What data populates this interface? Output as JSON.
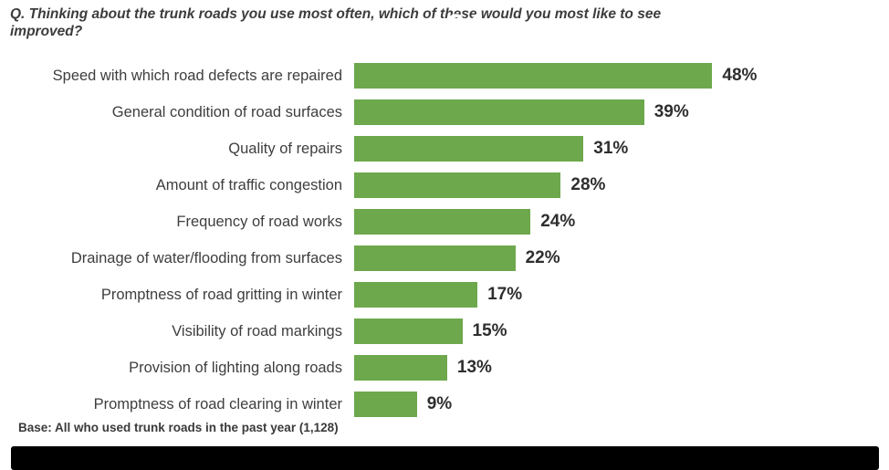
{
  "header": {
    "question_line1": "Q. Thinking about the trunk roads you use most often, which of these would you most like to see",
    "question_line2": "improved?",
    "unit_symbol": "%"
  },
  "chart_data": {
    "type": "bar",
    "orientation": "horizontal",
    "unit": "%",
    "title": "Q. Thinking about the trunk roads you use most often, which of these would you most like to see improved?",
    "categories": [
      "Speed with which road defects are repaired",
      "General condition of road surfaces",
      "Quality of repairs",
      "Amount of traffic congestion",
      "Frequency of road works",
      "Drainage of water/flooding from surfaces",
      "Promptness of road gritting in winter",
      "Visibility of road markings",
      "Provision of lighting along roads",
      "Promptness of road clearing in winter"
    ],
    "values": [
      48,
      39,
      31,
      28,
      24,
      22,
      17,
      15,
      13,
      9
    ],
    "xlim": [
      0,
      100
    ],
    "grid": false,
    "legend": "none",
    "data_labels": "outside-end"
  },
  "footer": {
    "base_note": "Base: All who used trunk roads in the past year (1,128)"
  },
  "colors": {
    "bar": "#6da84c",
    "bar_border": "#ffffff",
    "title_text": "#3c3c3c",
    "category_text": "#3e3e3e",
    "value_text": "#2e2e2e",
    "unit_text": "#ffffff",
    "bottom_bar": "#000000",
    "background": "#ffffff"
  }
}
